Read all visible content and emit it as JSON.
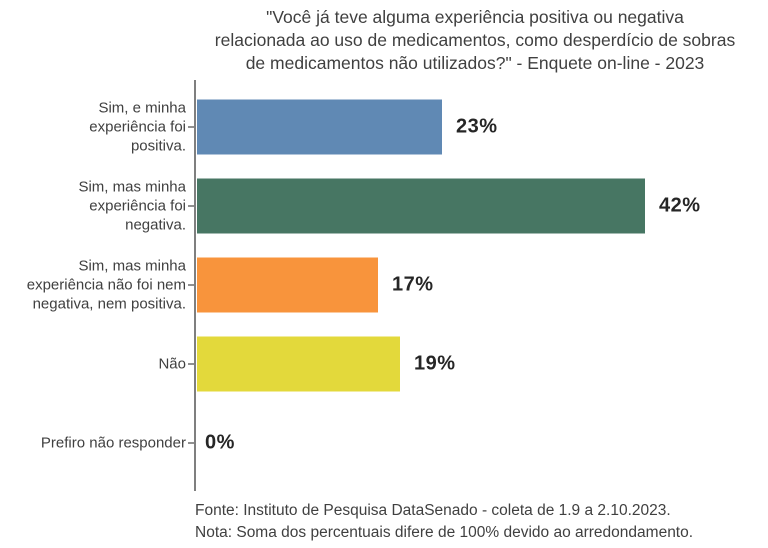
{
  "header": {
    "title_lines": [
      "\"Você já teve alguma experiência positiva ou negativa",
      "relacionada ao uso de medicamentos, como desperdício de sobras",
      "de medicamentos não utilizados?\" - Enquete on-line - 2023"
    ]
  },
  "chart_data": {
    "type": "bar",
    "orientation": "horizontal",
    "title": "\"Você já teve alguma experiência positiva ou negativa relacionada ao uso de medicamentos, como desperdício de sobras de medicamentos não utilizados?\" - Enquete on-line - 2023",
    "categories": [
      "Sim, e minha experiência foi positiva.",
      "Sim, mas minha experiência foi negativa.",
      "Sim, mas minha experiência não foi nem negativa, nem positiva.",
      "Não",
      "Prefiro não responder"
    ],
    "category_label_lines": [
      [
        "Sim, e minha",
        "experiência foi",
        "positiva."
      ],
      [
        "Sim, mas minha",
        "experiência foi",
        "negativa."
      ],
      [
        "Sim, mas minha",
        "experiência não foi nem",
        "negativa, nem positiva."
      ],
      [
        "Não"
      ],
      [
        "Prefiro não responder"
      ]
    ],
    "values": [
      23,
      42,
      17,
      19,
      0
    ],
    "value_labels": [
      "23%",
      "42%",
      "17%",
      "19%",
      "0%"
    ],
    "bar_colors": [
      "#6089B4",
      "#477663",
      "#F8943C",
      "#E3D93B",
      null
    ],
    "xlim": [
      0,
      53.6
    ],
    "xlabel": "",
    "ylabel": "",
    "grid": false,
    "legend": false
  },
  "footer": {
    "source": "Fonte: Instituto de Pesquisa DataSenado - coleta de 1.9 a 2.10.2023.",
    "note": "Nota: Soma dos percentuais difere de 100% devido ao arredondamento."
  },
  "colors": {
    "axis": "#7F7F7F",
    "tick": "#909090",
    "title_text": "#404040",
    "category_text": "#404040",
    "value_text": "#262626",
    "background": "#FFFFFF"
  }
}
